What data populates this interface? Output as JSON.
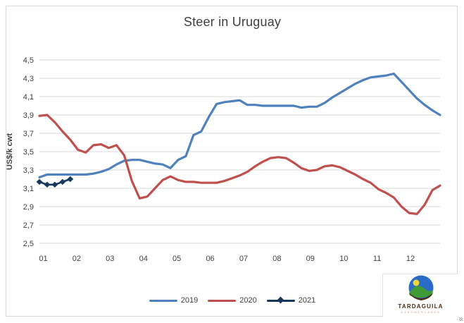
{
  "window": {
    "background": "#ffffff",
    "border_color": "#d9d9d9"
  },
  "chart_data": {
    "type": "line",
    "title": "Steer in Uruguay",
    "xlabel": "",
    "ylabel": "US$/k cwt",
    "ylim": [
      2.5,
      4.5
    ],
    "y_tick_step": 0.2,
    "y_tick_labels": [
      "4,5",
      "4,3",
      "4,1",
      "3,9",
      "3,7",
      "3,5",
      "3,3",
      "3,1",
      "2,9",
      "2,7",
      "2,5"
    ],
    "x_tick_labels": [
      "01",
      "02",
      "03",
      "04",
      "05",
      "06",
      "07",
      "08",
      "09",
      "10",
      "11",
      "12"
    ],
    "x_axis_note": "weekly points across months 01-12",
    "grid": true,
    "gridline_color": "#d9d9d9",
    "text_color": "#404040",
    "legend_position": "bottom",
    "series": [
      {
        "name": "2019",
        "color": "#4f81bd",
        "marker": "none",
        "values": [
          3.22,
          3.25,
          3.25,
          3.25,
          3.25,
          3.25,
          3.25,
          3.26,
          3.28,
          3.31,
          3.36,
          3.4,
          3.41,
          3.41,
          3.39,
          3.37,
          3.36,
          3.32,
          3.41,
          3.45,
          3.68,
          3.72,
          3.88,
          4.02,
          4.04,
          4.05,
          4.06,
          4.01,
          4.01,
          4.0,
          4.0,
          4.0,
          4.0,
          4.0,
          3.98,
          3.99,
          3.99,
          4.03,
          4.09,
          4.14,
          4.19,
          4.24,
          4.28,
          4.31,
          4.32,
          4.33,
          4.35,
          4.26,
          4.17,
          4.08,
          4.01,
          3.95,
          3.9
        ]
      },
      {
        "name": "2020",
        "color": "#c0504d",
        "marker": "none",
        "values": [
          3.89,
          3.9,
          3.82,
          3.72,
          3.63,
          3.52,
          3.49,
          3.57,
          3.58,
          3.54,
          3.57,
          3.46,
          3.18,
          2.99,
          3.01,
          3.1,
          3.19,
          3.23,
          3.19,
          3.17,
          3.17,
          3.16,
          3.16,
          3.16,
          3.18,
          3.21,
          3.24,
          3.28,
          3.34,
          3.39,
          3.43,
          3.44,
          3.43,
          3.38,
          3.32,
          3.29,
          3.3,
          3.34,
          3.35,
          3.33,
          3.29,
          3.25,
          3.2,
          3.16,
          3.09,
          3.05,
          3.0,
          2.9,
          2.83,
          2.82,
          2.92,
          3.08,
          3.13
        ]
      },
      {
        "name": "2021",
        "color": "#17375e",
        "marker": "diamond",
        "values": [
          3.17,
          3.14,
          3.14,
          3.17,
          3.2
        ]
      }
    ]
  },
  "logo": {
    "name": "TARDAGUILA",
    "subtext": "AGROMERCADOS",
    "text_color": "#4a2d14",
    "sky_color": "#2a6bc8",
    "hill_color": "#3f9b35",
    "sun_color": "#f2d43c",
    "base_color": "#4d2f15"
  }
}
